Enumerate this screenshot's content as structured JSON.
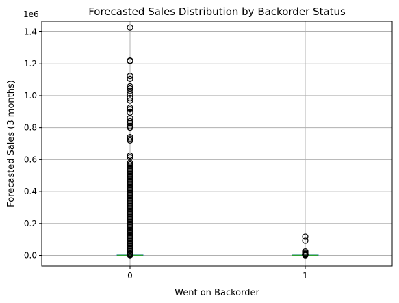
{
  "chart_data": {
    "type": "box",
    "title": "Forecasted Sales Distribution by Backorder Status",
    "xlabel": "Went on Backorder",
    "ylabel": "Forecasted Sales (3 months)",
    "y_offset_label": "1e6",
    "categories": [
      "0",
      "1"
    ],
    "ylim": [
      -70000,
      1500000
    ],
    "y_ticks": [
      0,
      200000,
      400000,
      600000,
      800000,
      1000000,
      1200000,
      1400000
    ],
    "y_tick_labels": [
      "0.0",
      "0.2",
      "0.4",
      "0.6",
      "0.8",
      "1.0",
      "1.2",
      "1.4"
    ],
    "grid": true,
    "colors": {
      "median": "#2ca02c",
      "box": "#1f77b4",
      "flier": "#000000",
      "grid": "#b0b0b0"
    },
    "boxes": [
      {
        "category": "0",
        "q1": 0,
        "median": 0,
        "q3": 400,
        "whisker_low": 0,
        "whisker_high": 1000,
        "outliers": [
          1427000,
          1220000,
          1218000,
          1125000,
          1105000,
          1058000,
          1045000,
          1030000,
          1012000,
          985000,
          970000,
          925000,
          915000,
          895000,
          860000,
          840000,
          830000,
          810000,
          800000,
          740000,
          730000,
          720000,
          625000,
          615000,
          580000,
          570000,
          560000,
          550000,
          540000,
          530000,
          520000,
          510000,
          500000,
          490000,
          480000,
          470000,
          460000,
          450000,
          440000,
          430000,
          420000,
          410000,
          400000,
          390000,
          380000,
          370000,
          360000,
          350000,
          340000,
          330000,
          320000,
          310000,
          300000,
          290000,
          280000,
          270000,
          260000,
          250000,
          240000,
          230000,
          220000,
          210000,
          200000,
          190000,
          180000,
          170000,
          160000,
          150000,
          140000,
          130000,
          120000,
          110000,
          100000,
          90000,
          80000,
          70000,
          60000,
          50000,
          40000,
          30000,
          20000,
          10000,
          5000
        ]
      },
      {
        "category": "1",
        "q1": 0,
        "median": 0,
        "q3": 300,
        "whisker_low": 0,
        "whisker_high": 800,
        "outliers": [
          118000,
          92000,
          25000,
          18000,
          12000,
          8000,
          5000,
          3000
        ]
      }
    ]
  }
}
